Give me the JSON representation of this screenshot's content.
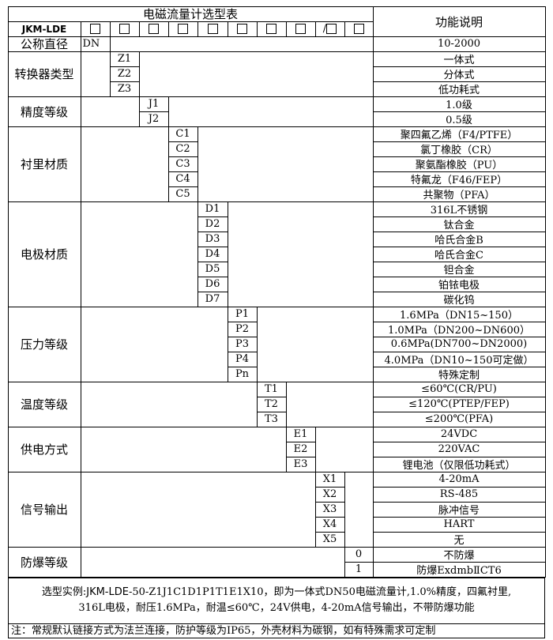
{
  "title": "电磁流量计选型表",
  "function_header": "功能说明",
  "model_prefix": "JKM-LDE",
  "code_slots": [
    "□",
    "□",
    "□",
    "□",
    "□",
    "□",
    "□",
    "□",
    "/□",
    "□"
  ],
  "groups": [
    {
      "label": "公称直径",
      "options": [
        {
          "code": "DN",
          "desc": "10-2000"
        }
      ]
    },
    {
      "label": "转换器类型",
      "options": [
        {
          "code": "Z1",
          "desc": "一体式"
        },
        {
          "code": "Z2",
          "desc": "分体式"
        },
        {
          "code": "Z3",
          "desc": "低功耗式"
        }
      ]
    },
    {
      "label": "精度等级",
      "options": [
        {
          "code": "J1",
          "desc": "1.0级"
        },
        {
          "code": "J2",
          "desc": "0.5级"
        }
      ]
    },
    {
      "label": "衬里材质",
      "options": [
        {
          "code": "C1",
          "desc": "聚四氟乙烯（F4/PTFE）"
        },
        {
          "code": "C2",
          "desc": "氯丁橡胶（CR）"
        },
        {
          "code": "C3",
          "desc": "聚氨酯橡胶（PU）"
        },
        {
          "code": "C4",
          "desc": "特氟龙（F46/FEP）"
        },
        {
          "code": "C5",
          "desc": "共聚物（PFA）"
        }
      ]
    },
    {
      "label": "电极材质",
      "options": [
        {
          "code": "D1",
          "desc": "316L不锈钢"
        },
        {
          "code": "D2",
          "desc": "钛合金"
        },
        {
          "code": "D3",
          "desc": "哈氏合金B"
        },
        {
          "code": "D4",
          "desc": "哈氏合金C"
        },
        {
          "code": "D5",
          "desc": "钽合金"
        },
        {
          "code": "D6",
          "desc": "铂铱电极"
        },
        {
          "code": "D7",
          "desc": "碳化钨"
        }
      ]
    },
    {
      "label": "压力等级",
      "options": [
        {
          "code": "P1",
          "desc": "1.6MPa（DN15~150）"
        },
        {
          "code": "P2",
          "desc": "1.0MPa（DN200~DN600）"
        },
        {
          "code": "P3",
          "desc": "0.6MPa(DN700~DN2000)"
        },
        {
          "code": "P4",
          "desc": "4.0MPa（DN10~150可定做）"
        },
        {
          "code": "Pn",
          "desc": "特殊定制"
        }
      ]
    },
    {
      "label": "温度等级",
      "options": [
        {
          "code": "T1",
          "desc": "≤60℃(CR/PU)"
        },
        {
          "code": "T2",
          "desc": "≤120℃(PTEP/FEP)"
        },
        {
          "code": "T3",
          "desc": "≤200℃(PFA)"
        }
      ]
    },
    {
      "label": "供电方式",
      "options": [
        {
          "code": "E1",
          "desc": "24VDC"
        },
        {
          "code": "E2",
          "desc": "220VAC"
        },
        {
          "code": "E3",
          "desc": "锂电池（仅限低功耗式）"
        }
      ]
    },
    {
      "label": "信号输出",
      "options": [
        {
          "code": "X1",
          "desc": "4-20mA"
        },
        {
          "code": "X2",
          "desc": "RS-485"
        },
        {
          "code": "X3",
          "desc": "脉冲信号"
        },
        {
          "code": "X4",
          "desc": "HART"
        },
        {
          "code": "X5",
          "desc": "无"
        }
      ]
    },
    {
      "label": "防爆等级",
      "options": [
        {
          "code": "0",
          "desc": "不防爆"
        },
        {
          "code": "1",
          "desc": "防爆ExdmbⅡCT6"
        }
      ]
    }
  ],
  "example": {
    "prefix": "选型实例:",
    "model": "JKM-LDE",
    "line1_rest": "-50-Z1J1C1D1P1T1E1X10，即为一体式DN50电磁流量计,1.0%精度，四氟衬里,",
    "line2": "316L电极，耐压1.6MPa，耐温≤60℃，24V供电，4-20mA信号输出，不带防爆功能"
  },
  "note": "注：常规默认链接方式为法兰连接，防护等级为IP65，外壳材料为碳钢，如有特殊需求可定制"
}
